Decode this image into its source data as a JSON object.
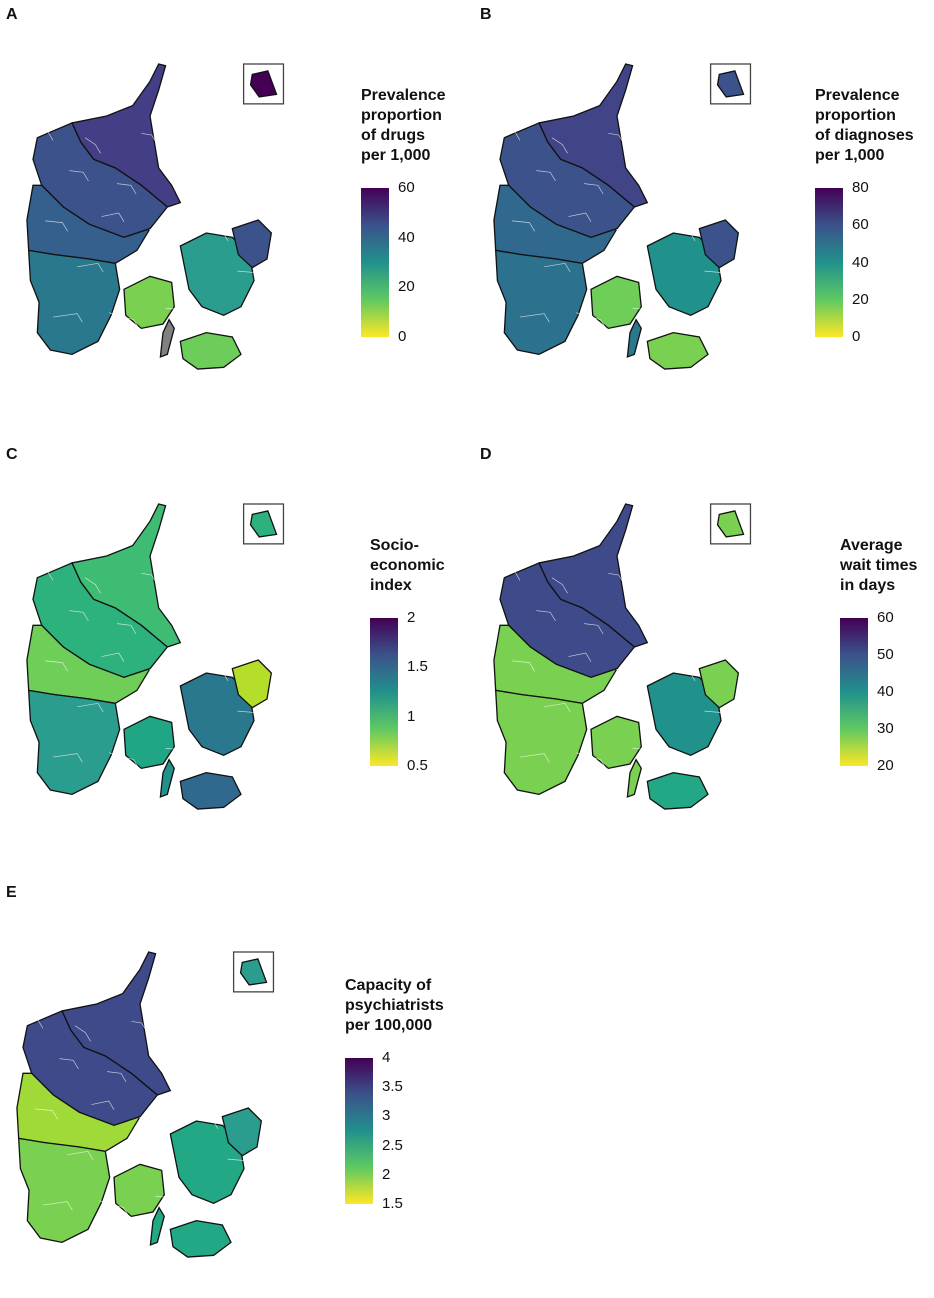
{
  "panels": [
    {
      "letter": "A",
      "legend_title": "Prevalence\nproportion\nof drugs\nper 1,000",
      "ticks": [
        "60",
        "40",
        "20",
        "0"
      ],
      "colors": {
        "north": "#433e85",
        "northjut": "#3b528b",
        "midjut": "#355f8d",
        "southjut": "#2a788e",
        "fyn": "#7ad151",
        "zeal": "#2a9d8f",
        "cph": "#3b528b",
        "lolland": "#6ccd5a",
        "bornholm": "#440154",
        "gray": "#808080"
      }
    },
    {
      "letter": "B",
      "legend_title": "Prevalence\nproportion\nof diagnoses\nper 1,000",
      "ticks": [
        "80",
        "60",
        "40",
        "20",
        "0"
      ],
      "colors": {
        "north": "#414487",
        "northjut": "#3b528b",
        "midjut": "#31688e",
        "southjut": "#2c728e",
        "fyn": "#6ece58",
        "zeal": "#21918c",
        "cph": "#3b528b",
        "lolland": "#7ad151",
        "bornholm": "#3b528b",
        "gray": "#2a788e"
      }
    },
    {
      "letter": "C",
      "legend_title": "Socio-\neconomic\nindex",
      "ticks": [
        "2",
        "1.5",
        "1",
        "0.5"
      ],
      "colors": {
        "north": "#3fbc73",
        "northjut": "#2db27d",
        "midjut": "#6ece58",
        "southjut": "#2a9d8f",
        "fyn": "#21a685",
        "zeal": "#2a788e",
        "cph": "#b5de2b",
        "lolland": "#31688e",
        "bornholm": "#2db27d",
        "gray": "#21918c"
      }
    },
    {
      "letter": "D",
      "legend_title": "Average\nwait times\nin days",
      "ticks": [
        "60",
        "50",
        "40",
        "30",
        "20"
      ],
      "colors": {
        "north": "#3e4a89",
        "northjut": "#3e4a89",
        "midjut": "#7ad151",
        "southjut": "#7ad151",
        "fyn": "#7ad151",
        "zeal": "#21918c",
        "cph": "#7ad151",
        "lolland": "#22a884",
        "bornholm": "#7ad151",
        "gray": "#7ad151"
      }
    },
    {
      "letter": "E",
      "legend_title": "Capacity of\npsychiatrists\nper 100,000",
      "ticks": [
        "4",
        "3.5",
        "3",
        "2.5",
        "2",
        "1.5"
      ],
      "colors": {
        "north": "#3e4a89",
        "northjut": "#3e4a89",
        "midjut": "#a0da39",
        "southjut": "#7ad151",
        "fyn": "#7ad151",
        "zeal": "#22a884",
        "cph": "#2a9d8f",
        "lolland": "#22a884",
        "bornholm": "#2a9d8f",
        "gray": "#22a884"
      }
    }
  ]
}
